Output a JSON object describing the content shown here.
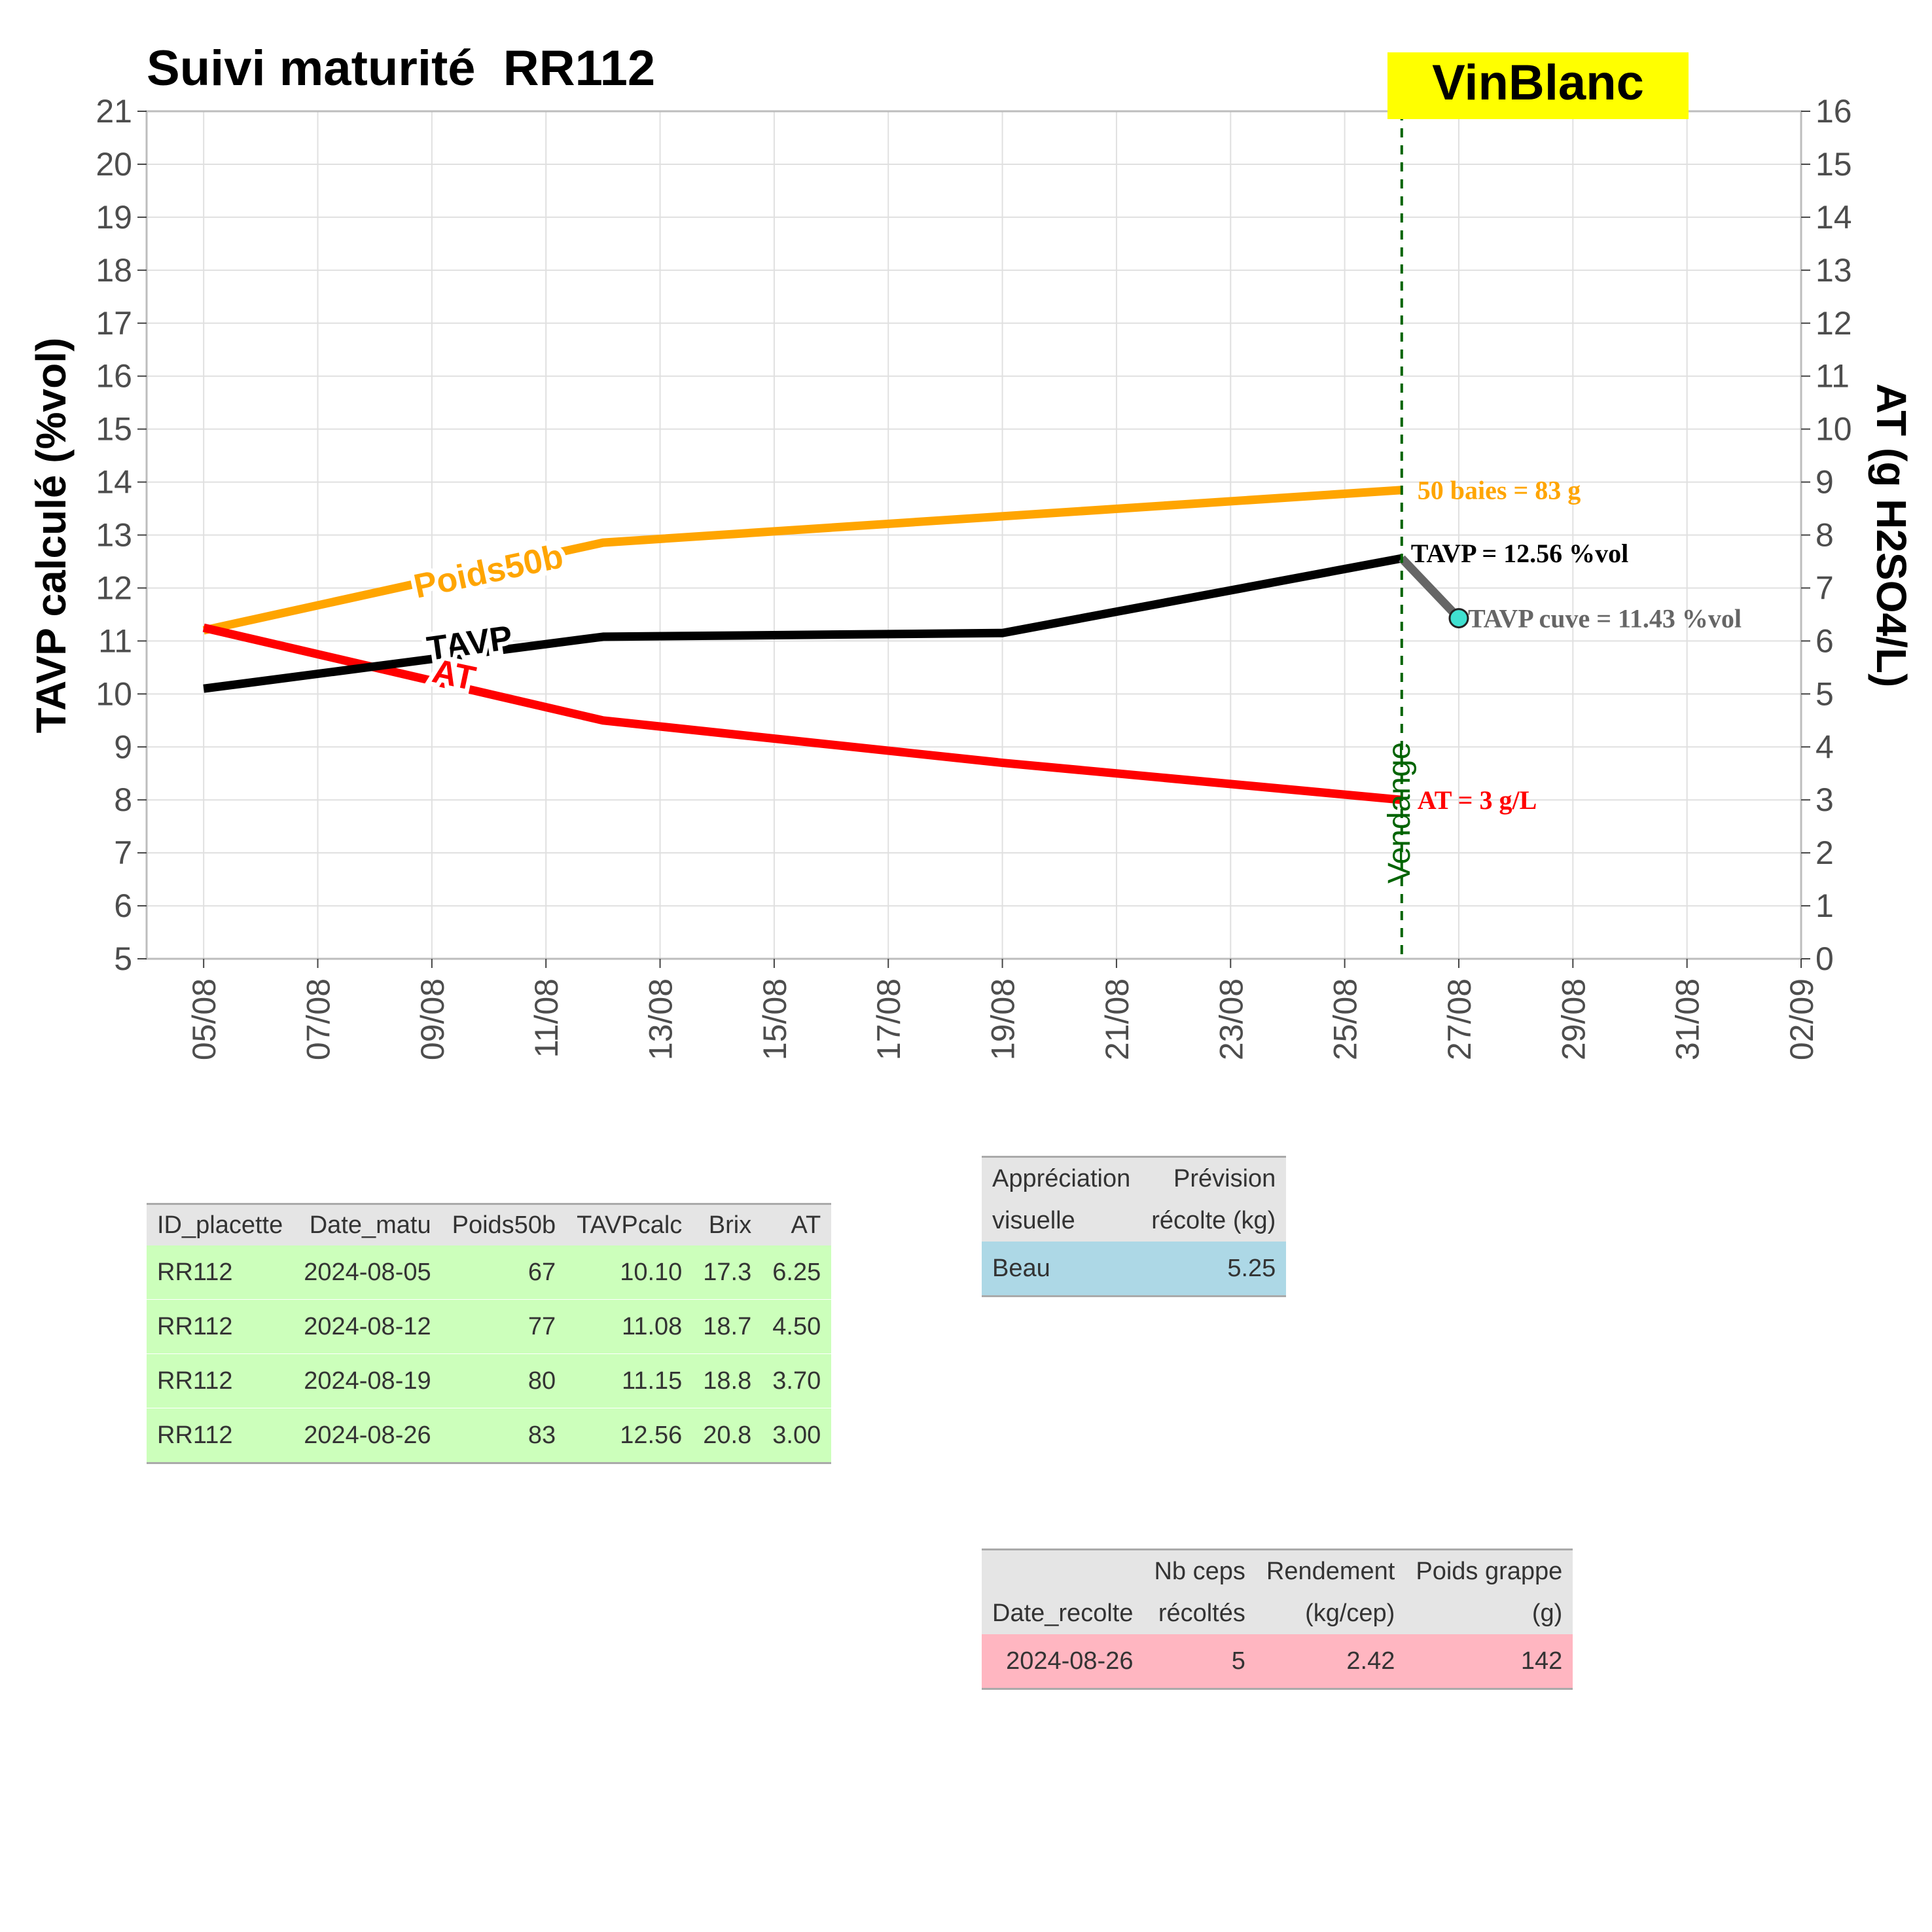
{
  "chart_data": {
    "type": "line",
    "title": "Suivi maturité  RR112",
    "badge": "VinBlanc",
    "ylabel_left": "TAVP calculé (%vol)",
    "ylabel_right": "AT (g H2SO4/L)",
    "y_left_range": [
      5,
      21
    ],
    "y_right_range": [
      0,
      16
    ],
    "x_range": [
      "2024-08-04",
      "2024-09-02"
    ],
    "x_ticks": [
      "05/08",
      "07/08",
      "09/08",
      "11/08",
      "13/08",
      "15/08",
      "17/08",
      "19/08",
      "21/08",
      "23/08",
      "25/08",
      "27/08",
      "29/08",
      "31/08",
      "02/09"
    ],
    "y_left_ticks": [
      5,
      6,
      7,
      8,
      9,
      10,
      11,
      12,
      13,
      14,
      15,
      16,
      17,
      18,
      19,
      20,
      21
    ],
    "y_right_ticks": [
      0,
      1,
      2,
      3,
      4,
      5,
      6,
      7,
      8,
      9,
      10,
      11,
      12,
      13,
      14,
      15,
      16
    ],
    "grid": true,
    "x": [
      "2024-08-05",
      "2024-08-12",
      "2024-08-19",
      "2024-08-26"
    ],
    "series": [
      {
        "name": "TAVP",
        "axis": "left",
        "color": "#000000",
        "values": [
          10.1,
          11.08,
          11.15,
          12.56
        ]
      },
      {
        "name": "AT",
        "axis": "right",
        "color": "#ff0000",
        "values": [
          6.25,
          4.5,
          3.7,
          3.0
        ]
      },
      {
        "name": "Poids50b",
        "axis": "left_scaled",
        "color": "#ffa500",
        "values": [
          67,
          77,
          80,
          83
        ]
      }
    ],
    "cuve": {
      "x": "2024-08-27",
      "value": 11.43,
      "color": "#666666",
      "point_color": "#40e0d0"
    },
    "harvest": {
      "x": "2024-08-26",
      "label": "Vendange",
      "color": "#006400"
    },
    "annotations": {
      "poids": "50 baies = 83 g",
      "tavp": "TAVP = 12.56 %vol",
      "cuve": "TAVP cuve = 11.43 %vol",
      "at": "AT = 3 g/L"
    }
  },
  "tables": {
    "maturite": {
      "headers": [
        "ID_placette",
        "Date_matu",
        "Poids50b",
        "TAVPcalc",
        "Brix",
        "AT"
      ],
      "rows": [
        [
          "RR112",
          "2024-08-05",
          "67",
          "10.10",
          "17.3",
          "6.25"
        ],
        [
          "RR112",
          "2024-08-12",
          "77",
          "11.08",
          "18.7",
          "4.50"
        ],
        [
          "RR112",
          "2024-08-19",
          "80",
          "11.15",
          "18.8",
          "3.70"
        ],
        [
          "RR112",
          "2024-08-26",
          "83",
          "12.56",
          "20.8",
          "3.00"
        ]
      ],
      "row_color": "#ccffbb"
    },
    "appreciation": {
      "headers": [
        [
          "Appréciation",
          "visuelle"
        ],
        [
          "Prévision",
          "récolte (kg)"
        ]
      ],
      "rows": [
        [
          "Beau",
          "5.25"
        ]
      ],
      "row_color": "#add8e6"
    },
    "recolte": {
      "headers": [
        [
          "",
          "Date_recolte"
        ],
        [
          "Nb ceps",
          "récoltés"
        ],
        [
          "Rendement",
          "(kg/cep)"
        ],
        [
          "Poids grappe",
          "(g)"
        ]
      ],
      "rows": [
        [
          "2024-08-26",
          "5",
          "2.42",
          "142"
        ]
      ],
      "row_color": "#ffb6c1"
    }
  }
}
